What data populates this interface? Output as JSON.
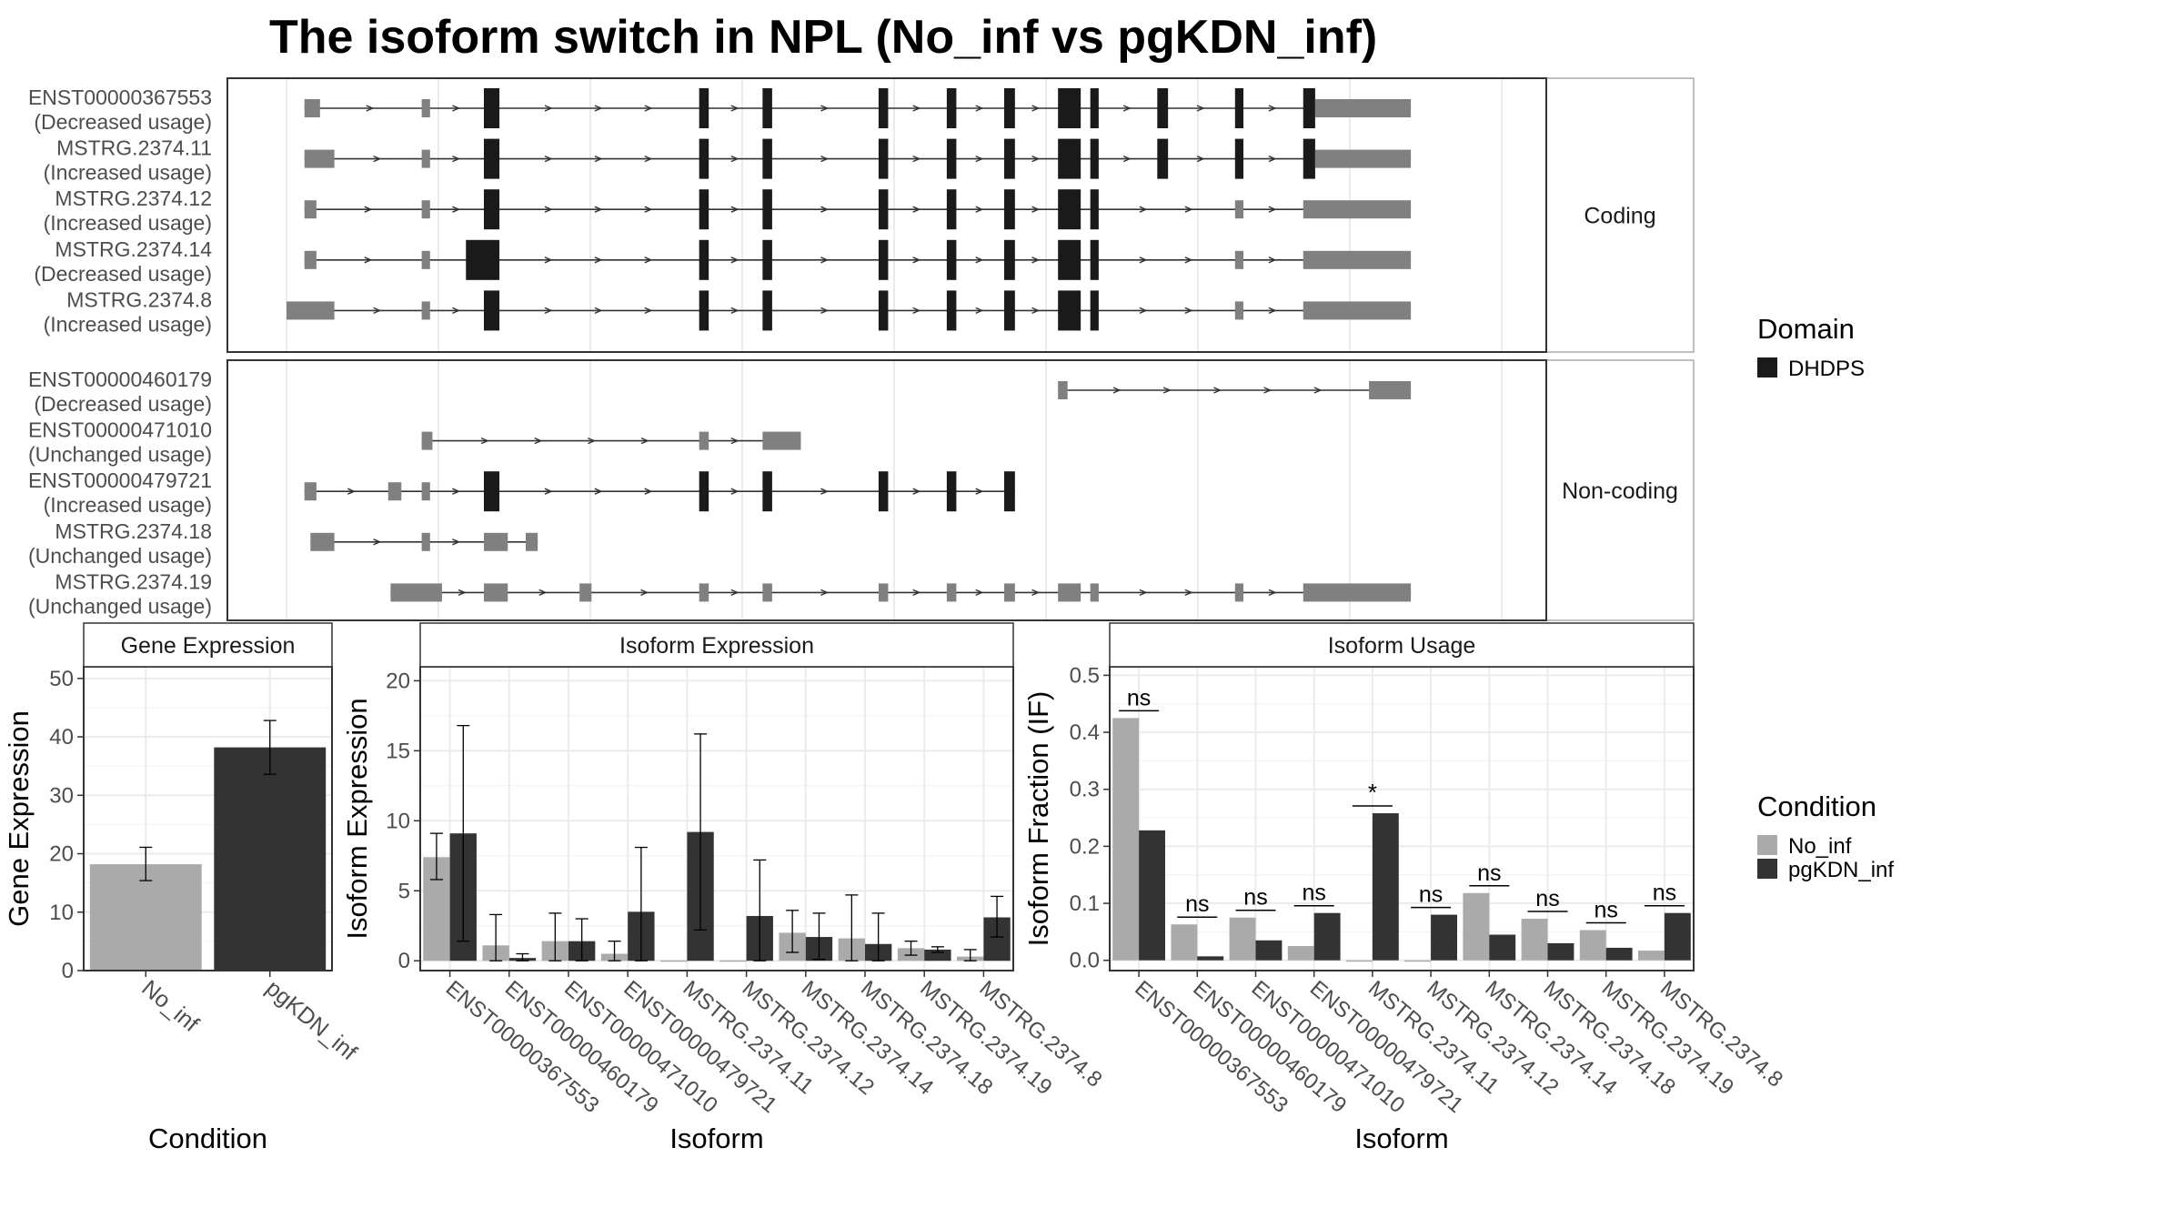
{
  "title": "The isoform switch in NPL (No_inf vs pgKDN_inf)",
  "colors": {
    "no_inf": "#aaaaaa",
    "pgkdn_inf": "#333333",
    "domain": "#1a1a1a",
    "exon": "#808080",
    "panel_border": "#333333",
    "grid": "#ebebeb",
    "strip_fill": "#ffffff"
  },
  "gene_model": {
    "panels": [
      {
        "label": "Coding",
        "isoforms": [
          {
            "id": "ENST00000367553",
            "usage": "(Decreased usage)",
            "exons": [
              [
                0.015,
                0.028
              ],
              [
                0.113,
                0.12
              ],
              [
                0.165,
                0.178,
                "d"
              ],
              [
                0.345,
                0.353,
                "d"
              ],
              [
                0.398,
                0.406,
                "d"
              ],
              [
                0.495,
                0.503,
                "d"
              ],
              [
                0.552,
                0.56,
                "d"
              ],
              [
                0.6,
                0.609,
                "d"
              ],
              [
                0.645,
                0.664,
                "d"
              ],
              [
                0.672,
                0.679,
                "d"
              ],
              [
                0.728,
                0.737,
                "d"
              ],
              [
                0.793,
                0.8,
                "d"
              ],
              [
                0.85,
                0.86,
                "d"
              ],
              [
                0.86,
                0.94
              ]
            ]
          },
          {
            "id": "MSTRG.2374.11",
            "usage": "(Increased usage)",
            "exons": [
              [
                0.015,
                0.04
              ],
              [
                0.113,
                0.12
              ],
              [
                0.165,
                0.178,
                "d"
              ],
              [
                0.345,
                0.353,
                "d"
              ],
              [
                0.398,
                0.406,
                "d"
              ],
              [
                0.495,
                0.503,
                "d"
              ],
              [
                0.552,
                0.56,
                "d"
              ],
              [
                0.6,
                0.609,
                "d"
              ],
              [
                0.645,
                0.664,
                "d"
              ],
              [
                0.672,
                0.679,
                "d"
              ],
              [
                0.728,
                0.737,
                "d"
              ],
              [
                0.793,
                0.8,
                "d"
              ],
              [
                0.85,
                0.86,
                "d"
              ],
              [
                0.86,
                0.94
              ]
            ]
          },
          {
            "id": "MSTRG.2374.12",
            "usage": "(Increased usage)",
            "exons": [
              [
                0.015,
                0.025
              ],
              [
                0.113,
                0.12
              ],
              [
                0.165,
                0.178,
                "d"
              ],
              [
                0.345,
                0.353,
                "d"
              ],
              [
                0.398,
                0.406,
                "d"
              ],
              [
                0.495,
                0.503,
                "d"
              ],
              [
                0.552,
                0.56,
                "d"
              ],
              [
                0.6,
                0.609,
                "d"
              ],
              [
                0.645,
                0.664,
                "d"
              ],
              [
                0.672,
                0.679,
                "d"
              ],
              [
                0.793,
                0.8
              ],
              [
                0.85,
                0.94
              ]
            ]
          },
          {
            "id": "MSTRG.2374.14",
            "usage": "(Decreased usage)",
            "exons": [
              [
                0.015,
                0.025
              ],
              [
                0.113,
                0.12
              ],
              [
                0.15,
                0.178,
                "d"
              ],
              [
                0.345,
                0.353,
                "d"
              ],
              [
                0.398,
                0.406,
                "d"
              ],
              [
                0.495,
                0.503,
                "d"
              ],
              [
                0.552,
                0.56,
                "d"
              ],
              [
                0.6,
                0.609,
                "d"
              ],
              [
                0.645,
                0.664,
                "d"
              ],
              [
                0.672,
                0.679,
                "d"
              ],
              [
                0.793,
                0.8
              ],
              [
                0.85,
                0.94
              ]
            ]
          },
          {
            "id": "MSTRG.2374.8",
            "usage": "(Increased usage)",
            "exons": [
              [
                0.0,
                0.04
              ],
              [
                0.113,
                0.12
              ],
              [
                0.165,
                0.178,
                "d"
              ],
              [
                0.345,
                0.353,
                "d"
              ],
              [
                0.398,
                0.406,
                "d"
              ],
              [
                0.495,
                0.503,
                "d"
              ],
              [
                0.552,
                0.56,
                "d"
              ],
              [
                0.6,
                0.609,
                "d"
              ],
              [
                0.645,
                0.664,
                "d"
              ],
              [
                0.672,
                0.679,
                "d"
              ],
              [
                0.793,
                0.8
              ],
              [
                0.85,
                0.94
              ]
            ]
          }
        ]
      },
      {
        "label": "Non-coding",
        "isoforms": [
          {
            "id": "ENST00000460179",
            "usage": "(Decreased usage)",
            "exons": [
              [
                0.645,
                0.653
              ],
              [
                0.905,
                0.94
              ]
            ]
          },
          {
            "id": "ENST00000471010",
            "usage": "(Unchanged usage)",
            "exons": [
              [
                0.113,
                0.122
              ],
              [
                0.345,
                0.353
              ],
              [
                0.398,
                0.43
              ]
            ]
          },
          {
            "id": "ENST00000479721",
            "usage": "(Increased usage)",
            "exons": [
              [
                0.015,
                0.025
              ],
              [
                0.085,
                0.096
              ],
              [
                0.113,
                0.12
              ],
              [
                0.165,
                0.178,
                "d"
              ],
              [
                0.345,
                0.353,
                "d"
              ],
              [
                0.398,
                0.406,
                "d"
              ],
              [
                0.495,
                0.503,
                "d"
              ],
              [
                0.552,
                0.56,
                "d"
              ],
              [
                0.6,
                0.609,
                "d"
              ]
            ]
          },
          {
            "id": "MSTRG.2374.18",
            "usage": "(Unchanged usage)",
            "exons": [
              [
                0.02,
                0.04
              ],
              [
                0.113,
                0.12
              ],
              [
                0.165,
                0.185
              ],
              [
                0.2,
                0.21
              ]
            ]
          },
          {
            "id": "MSTRG.2374.19",
            "usage": "(Unchanged usage)",
            "exons": [
              [
                0.087,
                0.13
              ],
              [
                0.165,
                0.185
              ],
              [
                0.245,
                0.255
              ],
              [
                0.345,
                0.353
              ],
              [
                0.398,
                0.406
              ],
              [
                0.495,
                0.503
              ],
              [
                0.552,
                0.56
              ],
              [
                0.6,
                0.609
              ],
              [
                0.645,
                0.664
              ],
              [
                0.672,
                0.679
              ],
              [
                0.793,
                0.8
              ],
              [
                0.85,
                0.94
              ]
            ]
          }
        ]
      }
    ],
    "legend": {
      "title": "Domain",
      "entries": [
        {
          "label": "DHDPS",
          "color": "#1a1a1a"
        }
      ]
    }
  },
  "chart_data": [
    {
      "type": "bar",
      "strip": "Gene Expression",
      "xlabel": "Condition",
      "ylabel": "Gene Expression",
      "ylim": [
        0,
        52
      ],
      "yticks": [
        0,
        10,
        20,
        30,
        40,
        50
      ],
      "categories": [
        "No_inf",
        "pgKDN_inf"
      ],
      "values": [
        18.2,
        38.2
      ],
      "errors": [
        [
          15.4,
          21.1
        ],
        [
          33.6,
          42.8
        ]
      ]
    },
    {
      "type": "bar",
      "strip": "Isoform Expression",
      "xlabel": "Isoform",
      "ylabel": "Isoform Expression",
      "ylim": [
        -0.7,
        21
      ],
      "yticks": [
        0,
        5,
        10,
        15,
        20
      ],
      "categories": [
        "ENST00000367553",
        "ENST00000460179",
        "ENST00000471010",
        "ENST00000479721",
        "MSTRG.2374.11",
        "MSTRG.2374.12",
        "MSTRG.2374.14",
        "MSTRG.2374.18",
        "MSTRG.2374.19",
        "MSTRG.2374.8"
      ],
      "series": [
        {
          "name": "No_inf",
          "values": [
            7.4,
            1.1,
            1.4,
            0.5,
            0.03,
            0.03,
            2.0,
            1.6,
            0.9,
            0.3
          ],
          "errors": [
            [
              5.8,
              9.1
            ],
            [
              0.0,
              3.3
            ],
            [
              0.0,
              3.4
            ],
            [
              0.0,
              1.4
            ],
            null,
            null,
            [
              0.6,
              3.6
            ],
            [
              0.0,
              4.7
            ],
            [
              0.4,
              1.4
            ],
            [
              0.0,
              0.8
            ]
          ]
        },
        {
          "name": "pgKDN_inf",
          "values": [
            9.1,
            0.2,
            1.4,
            3.5,
            9.2,
            3.2,
            1.7,
            1.2,
            0.8,
            3.1
          ],
          "errors": [
            [
              1.4,
              16.8
            ],
            [
              0.0,
              0.5
            ],
            [
              0.0,
              3.0
            ],
            [
              0.0,
              8.1
            ],
            [
              2.2,
              16.2
            ],
            [
              0.0,
              7.2
            ],
            [
              0.1,
              3.4
            ],
            [
              0.0,
              3.4
            ],
            [
              0.6,
              1.0
            ],
            [
              1.7,
              4.6
            ]
          ]
        }
      ]
    },
    {
      "type": "bar",
      "strip": "Isoform Usage",
      "xlabel": "Isoform",
      "ylabel": "Isoform Fraction (IF)",
      "ylim": [
        -0.018,
        0.515
      ],
      "yticks": [
        0.0,
        0.1,
        0.2,
        0.3,
        0.4,
        0.5
      ],
      "ytick_labels": [
        "0.0",
        "0.1",
        "0.2",
        "0.3",
        "0.4",
        "0.5"
      ],
      "categories": [
        "ENST00000367553",
        "ENST00000460179",
        "ENST00000471010",
        "ENST00000479721",
        "MSTRG.2374.11",
        "MSTRG.2374.12",
        "MSTRG.2374.14",
        "MSTRG.2374.18",
        "MSTRG.2374.19",
        "MSTRG.2374.8"
      ],
      "series": [
        {
          "name": "No_inf",
          "values": [
            0.425,
            0.063,
            0.075,
            0.025,
            0.0,
            0.0,
            0.118,
            0.073,
            0.053,
            0.017
          ]
        },
        {
          "name": "pgKDN_inf",
          "values": [
            0.228,
            0.007,
            0.035,
            0.083,
            0.258,
            0.08,
            0.045,
            0.03,
            0.022,
            0.083
          ]
        }
      ],
      "significance": [
        "ns",
        "ns",
        "ns",
        "ns",
        "*",
        "ns",
        "ns",
        "ns",
        "ns",
        "ns"
      ]
    }
  ],
  "condition_legend": {
    "title": "Condition",
    "entries": [
      {
        "label": "No_inf",
        "color": "#aaaaaa"
      },
      {
        "label": "pgKDN_inf",
        "color": "#333333"
      }
    ]
  }
}
